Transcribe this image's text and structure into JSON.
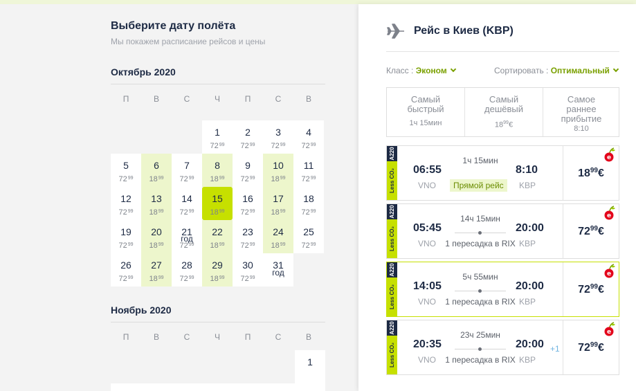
{
  "calendar": {
    "title": "Выберите дату полёта",
    "subtitle": "Мы покажем расписание рейсов и цены",
    "weekdays": [
      "П",
      "В",
      "С",
      "Ч",
      "П",
      "С",
      "В"
    ],
    "month1": {
      "name": "Октябрь 2020",
      "days": [
        {
          "d": "1",
          "p": "72",
          "c": "99"
        },
        {
          "d": "2",
          "p": "72",
          "c": "99"
        },
        {
          "d": "3",
          "p": "72",
          "c": "99"
        },
        {
          "d": "4",
          "p": "72",
          "c": "99"
        },
        {
          "d": "5",
          "p": "72",
          "c": "99"
        },
        {
          "d": "6",
          "p": "18",
          "c": "99"
        },
        {
          "d": "7",
          "p": "72",
          "c": "99"
        },
        {
          "d": "8",
          "p": "18",
          "c": "99"
        },
        {
          "d": "9",
          "p": "72",
          "c": "99"
        },
        {
          "d": "10",
          "p": "18",
          "c": "99"
        },
        {
          "d": "11",
          "p": "72",
          "c": "99"
        },
        {
          "d": "12",
          "p": "72",
          "c": "99"
        },
        {
          "d": "13",
          "p": "18",
          "c": "99"
        },
        {
          "d": "14",
          "p": "72",
          "c": "99"
        },
        {
          "d": "15",
          "p": "18",
          "c": "99"
        },
        {
          "d": "16",
          "p": "72",
          "c": "99"
        },
        {
          "d": "17",
          "p": "18",
          "c": "99"
        },
        {
          "d": "18",
          "p": "72",
          "c": "99"
        },
        {
          "d": "19",
          "p": "72",
          "c": "99"
        },
        {
          "d": "20",
          "p": "18",
          "c": "99"
        },
        {
          "d": "21",
          "p": "72",
          "c": "99",
          "g": "год"
        },
        {
          "d": "22",
          "p": "18",
          "c": "99"
        },
        {
          "d": "23",
          "p": "72",
          "c": "99"
        },
        {
          "d": "24",
          "p": "18",
          "c": "99"
        },
        {
          "d": "25",
          "p": "72",
          "c": "99"
        },
        {
          "d": "26",
          "p": "72",
          "c": "99"
        },
        {
          "d": "27",
          "p": "18",
          "c": "99"
        },
        {
          "d": "28",
          "p": "72",
          "c": "99"
        },
        {
          "d": "29",
          "p": "18",
          "c": "99"
        },
        {
          "d": "30",
          "p": "72",
          "c": "99"
        },
        {
          "d": "31",
          "g": "год"
        }
      ]
    },
    "month2": {
      "name": "Ноябрь 2020",
      "first_day": "1"
    }
  },
  "results": {
    "title": "Рейс в Киев (KBP)",
    "class_label": "Класс :",
    "class_value": "Эконом",
    "sort_label": "Сортировать :",
    "sort_value": "Оптимальный",
    "sort_tabs": [
      {
        "l1": "Самый",
        "l2": "быстрый",
        "val": "1ч 15мин"
      },
      {
        "l1": "Самый",
        "l2": "дешёвый",
        "val_main": "18",
        "val_sup": "99",
        "val_cur": "€"
      },
      {
        "l1": "Самое",
        "l2": "раннее",
        "l3": "прибытие",
        "val": "8:10"
      }
    ],
    "badge_co2": "Less CO₂",
    "badge_aircraft": "A220",
    "flights": [
      {
        "dep": "06:55",
        "dep_code": "VNO",
        "arr": "8:10",
        "arr_code": "KBP",
        "duration": "1ч 15мин",
        "direct": "Прямой рейс",
        "price": "18",
        "cents": "99",
        "cur": "€"
      },
      {
        "dep": "05:45",
        "dep_code": "VNO",
        "arr": "20:00",
        "arr_code": "KBP",
        "duration": "14ч 15мин",
        "stops": "1 пересадка в RIX",
        "price": "72",
        "cents": "99",
        "cur": "€"
      },
      {
        "dep": "14:05",
        "dep_code": "VNO",
        "arr": "20:00",
        "arr_code": "KBP",
        "duration": "5ч 55мин",
        "stops": "1 пересадка в RIX",
        "price": "72",
        "cents": "99",
        "cur": "€"
      },
      {
        "dep": "20:35",
        "dep_code": "VNO",
        "arr": "20:00",
        "arr_code": "KBP",
        "plus": "+1",
        "duration": "23ч 25мин",
        "stops": "1 пересадка в RIX",
        "price": "72",
        "cents": "99",
        "cur": "€"
      }
    ]
  }
}
